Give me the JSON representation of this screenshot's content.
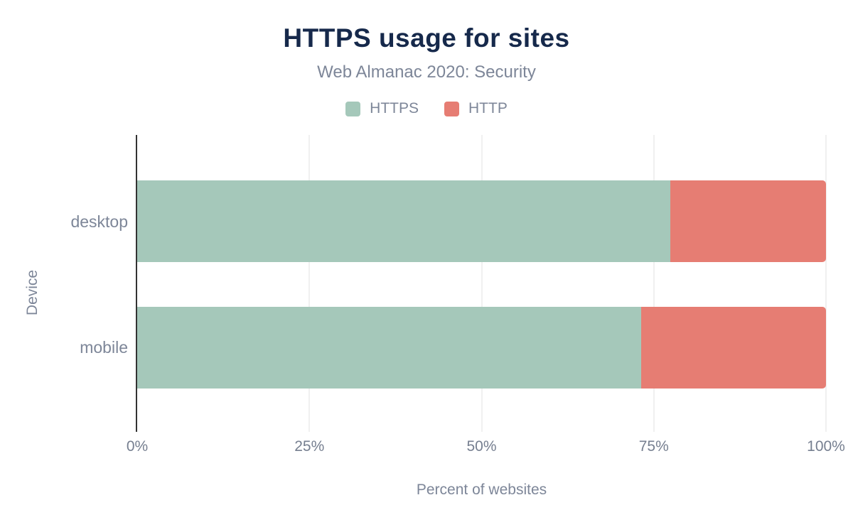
{
  "chart_data": {
    "type": "bar",
    "orientation": "horizontal",
    "stacked": true,
    "title": "HTTPS usage for sites",
    "subtitle": "Web Almanac 2020: Security",
    "categories": [
      "desktop",
      "mobile"
    ],
    "series": [
      {
        "name": "HTTPS",
        "color": "#a5c8ba",
        "values": [
          77.4,
          73.2
        ]
      },
      {
        "name": "HTTP",
        "color": "#e67d73",
        "values": [
          22.6,
          26.8
        ]
      }
    ],
    "xlabel": "Percent of websites",
    "ylabel": "Device",
    "x_ticks": [
      "0%",
      "25%",
      "50%",
      "75%",
      "100%"
    ],
    "x_tick_values": [
      0,
      25,
      50,
      75,
      100
    ],
    "xlim": [
      0,
      100
    ],
    "grid": "vertical",
    "legend_position": "top"
  },
  "colors": {
    "title": "#16294b",
    "text_muted": "#7d8698",
    "tick_text": "#767f90",
    "axis_line": "#333333",
    "gridline": "#f0f0f0",
    "background": "#ffffff",
    "https_green": "#a5c8ba",
    "http_red": "#e67d73"
  }
}
